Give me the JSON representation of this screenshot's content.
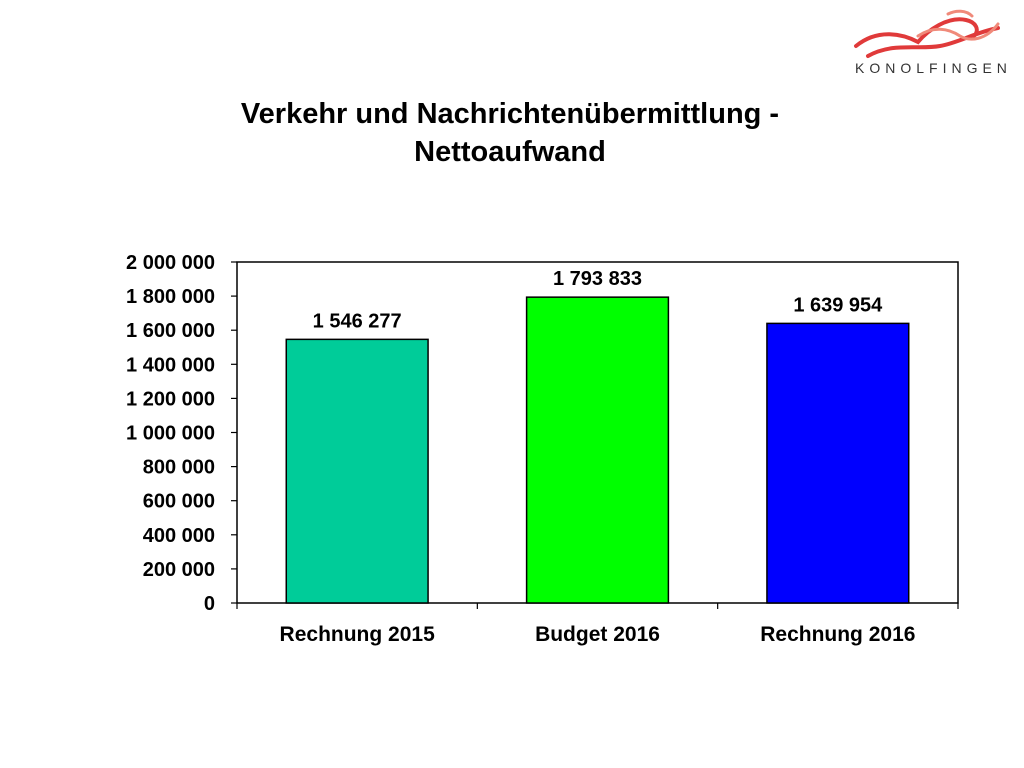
{
  "logo": {
    "text": "KONOLFINGEN",
    "colors": [
      "#e03a3a",
      "#f08a7a"
    ]
  },
  "chart_data": {
    "type": "bar",
    "title_lines": [
      "Verkehr und Nachrichtenübermittlung -",
      "Nettoaufwand"
    ],
    "categories": [
      "Rechnung 2015",
      "Budget 2016",
      "Rechnung 2016"
    ],
    "values": [
      1546277,
      1793833,
      1639954
    ],
    "value_labels": [
      "1 546 277",
      "1 793 833",
      "1 639 954"
    ],
    "bar_colors": [
      "#00cc99",
      "#00ff00",
      "#0000ff"
    ],
    "ylim": [
      0,
      2000000
    ],
    "ytick_values": [
      0,
      200000,
      400000,
      600000,
      800000,
      1000000,
      1200000,
      1400000,
      1600000,
      1800000,
      2000000
    ],
    "ytick_labels": [
      "0",
      "200 000",
      "400 000",
      "600 000",
      "800 000",
      "1 000 000",
      "1 200 000",
      "1 400 000",
      "1 600 000",
      "1 800 000",
      "2 000 000"
    ],
    "grid": false,
    "legend": "none"
  }
}
